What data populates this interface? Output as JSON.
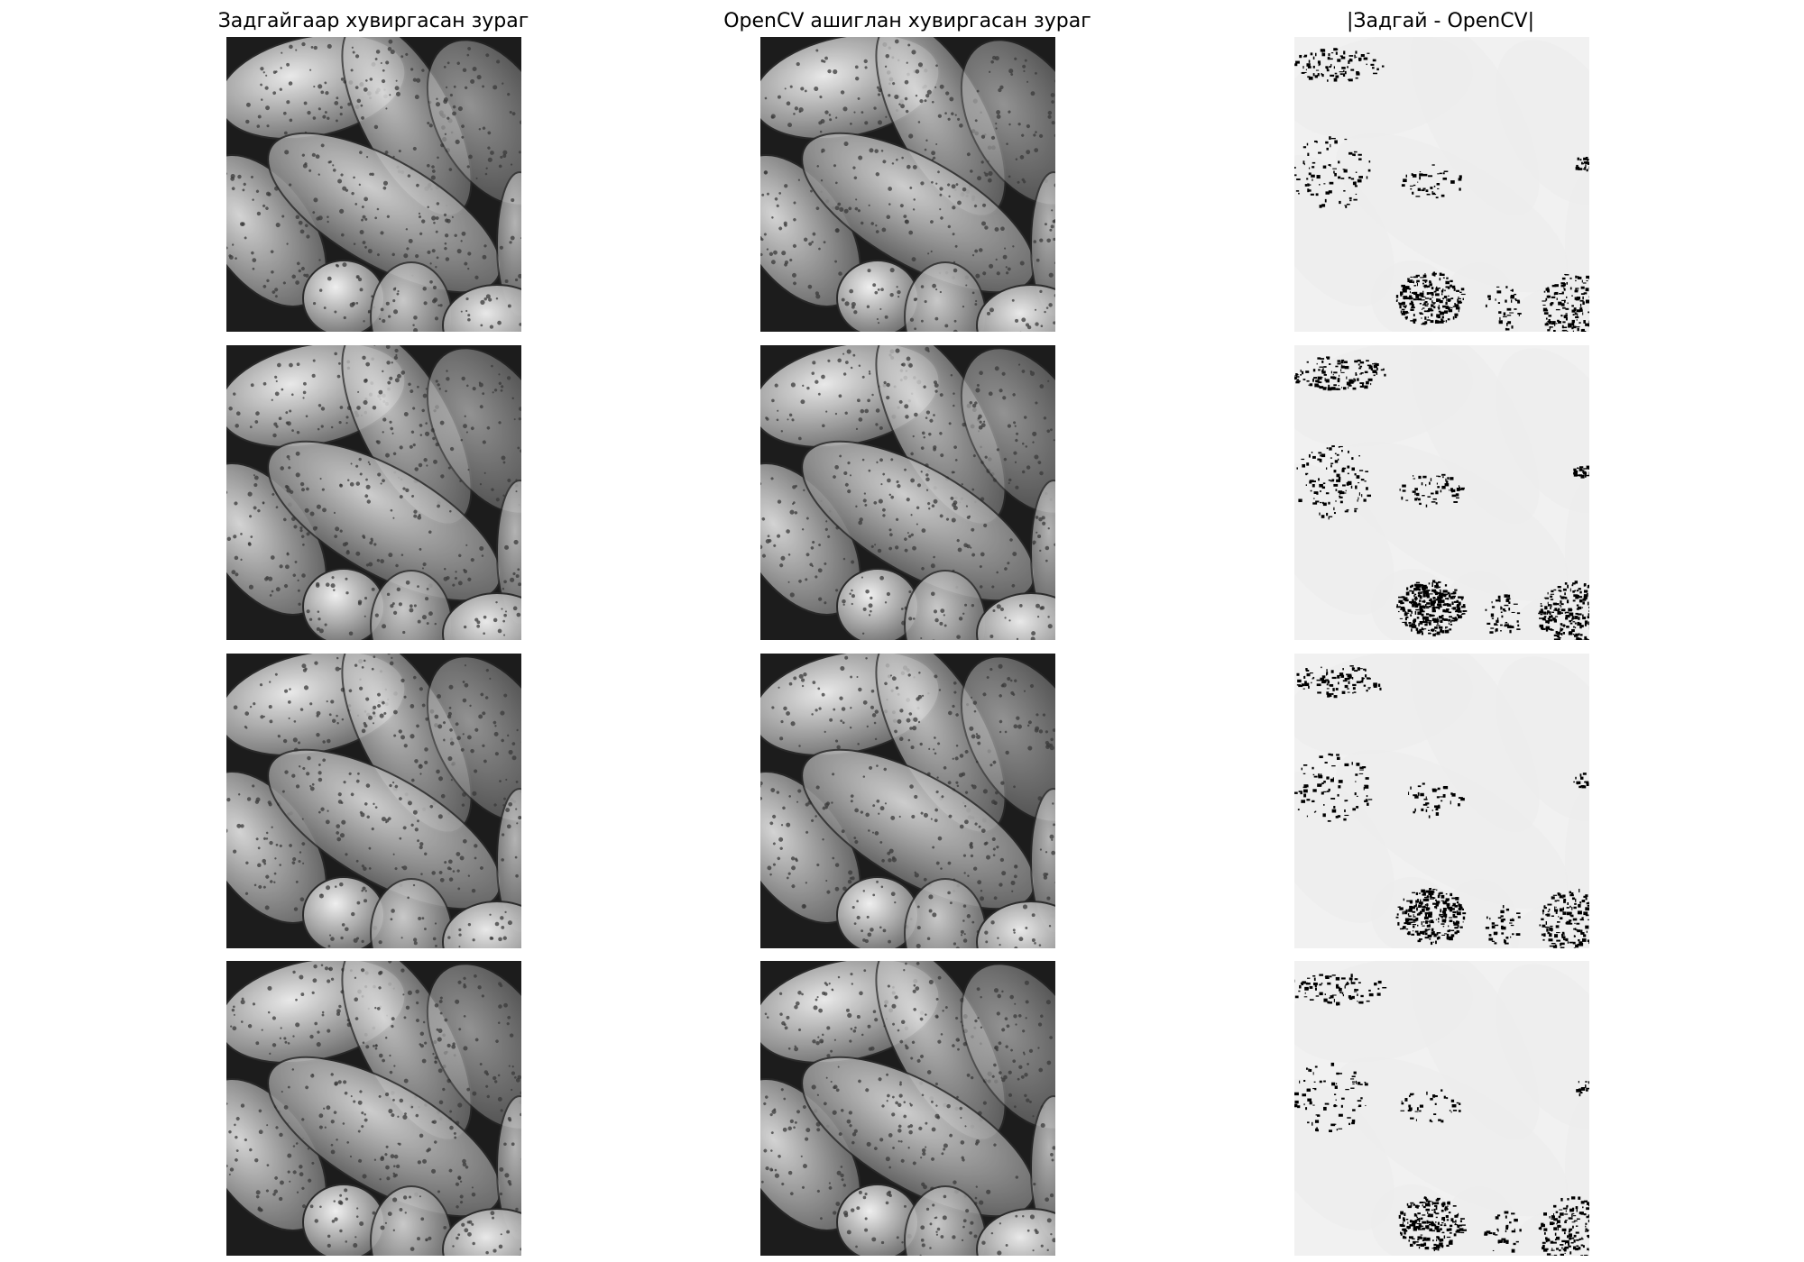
{
  "figure": {
    "columns": [
      {
        "title": "Задгайгаар хувиргасан зураг",
        "kind": "manual"
      },
      {
        "title": "OpenCV ашиглан хувиргасан зураг",
        "kind": "opencv"
      },
      {
        "title": "|Задгай - OpenCV|",
        "kind": "diff"
      }
    ],
    "row_count": 4,
    "colors": {
      "background": "#ffffff",
      "title_text": "#000000",
      "grain_light": "#dedede",
      "grain_dark": "#6e6e6e",
      "image_background": "#1c1c1c",
      "pore": "#3a3a3a",
      "diff_background": "#f1f1f1",
      "diff_mark": "#000000"
    }
  }
}
